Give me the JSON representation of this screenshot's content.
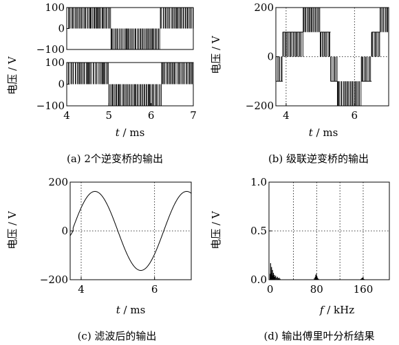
{
  "chart_data": [
    {
      "id": "a",
      "type": "line",
      "caption": "(a)  2个逆变桥的输出",
      "xlabel_var": "t",
      "xlabel_unit": " / ms",
      "ylabel": "电压 / V",
      "xlim": [
        4,
        7
      ],
      "xticks": [
        "4",
        "5",
        "6",
        "7"
      ],
      "subplots": [
        {
          "ylim": [
            -100,
            100
          ],
          "yticks": [
            "100",
            "0",
            "−100"
          ],
          "series": [
            {
              "style": "pwm",
              "segments": [
                {
                  "x": [
                    4.0,
                    4.55
                  ],
                  "levels": [
                    0,
                    100
                  ]
                },
                {
                  "x": [
                    4.55,
                    4.72
                  ],
                  "levels": [
                    0,
                    100
                  ]
                },
                {
                  "x": [
                    4.72,
                    5.05
                  ],
                  "levels": [
                    0,
                    100
                  ]
                },
                {
                  "x": [
                    5.05,
                    5.45
                  ],
                  "levels": [
                    -100,
                    0
                  ]
                },
                {
                  "x": [
                    5.45,
                    5.9
                  ],
                  "levels": [
                    -100,
                    0
                  ]
                },
                {
                  "x": [
                    5.9,
                    6.05
                  ],
                  "levels": [
                    -100,
                    0
                  ]
                },
                {
                  "x": [
                    6.05,
                    6.22
                  ],
                  "levels": [
                    -100,
                    0
                  ]
                },
                {
                  "x": [
                    6.22,
                    6.72
                  ],
                  "levels": [
                    0,
                    100
                  ]
                },
                {
                  "x": [
                    6.72,
                    7.0
                  ],
                  "levels": [
                    0,
                    100
                  ]
                }
              ]
            }
          ]
        },
        {
          "ylim": [
            -100,
            100
          ],
          "yticks": [
            "100",
            "0",
            "−100"
          ],
          "series": [
            {
              "style": "pwm",
              "segments": [
                {
                  "x": [
                    4.0,
                    4.5
                  ],
                  "levels": [
                    0,
                    100
                  ]
                },
                {
                  "x": [
                    4.5,
                    4.85
                  ],
                  "levels": [
                    0,
                    100
                  ]
                },
                {
                  "x": [
                    4.85,
                    5.0
                  ],
                  "levels": [
                    0,
                    100
                  ]
                },
                {
                  "x": [
                    5.0,
                    5.25
                  ],
                  "levels": [
                    -100,
                    0
                  ]
                },
                {
                  "x": [
                    5.25,
                    5.95
                  ],
                  "levels": [
                    -100,
                    0
                  ]
                },
                {
                  "x": [
                    5.95,
                    6.25
                  ],
                  "levels": [
                    -100,
                    0
                  ]
                },
                {
                  "x": [
                    6.25,
                    6.55
                  ],
                  "levels": [
                    0,
                    100
                  ]
                },
                {
                  "x": [
                    6.55,
                    7.0
                  ],
                  "levels": [
                    0,
                    100
                  ]
                }
              ]
            }
          ]
        }
      ]
    },
    {
      "id": "b",
      "type": "line",
      "caption": "(b)  级联逆变桥的输出",
      "xlabel_var": "t",
      "xlabel_unit": " / ms",
      "ylabel": "电压 / V",
      "xlim": [
        3.7,
        7.0
      ],
      "ylim": [
        -200,
        200
      ],
      "xticks_at": [
        4,
        6
      ],
      "xticks": [
        "4",
        "6"
      ],
      "yticks_at": [
        200,
        0,
        -200
      ],
      "yticks": [
        "200",
        "0",
        "−200"
      ],
      "grid": true,
      "series": [
        {
          "style": "pwm",
          "segments": [
            {
              "x": [
                3.7,
                3.9
              ],
              "levels": [
                -100,
                0
              ]
            },
            {
              "x": [
                3.9,
                4.5
              ],
              "levels": [
                0,
                100
              ]
            },
            {
              "x": [
                4.5,
                5.0
              ],
              "levels": [
                100,
                200
              ]
            },
            {
              "x": [
                5.0,
                5.3
              ],
              "levels": [
                0,
                100
              ]
            },
            {
              "x": [
                5.3,
                5.5
              ],
              "levels": [
                -100,
                0
              ]
            },
            {
              "x": [
                5.5,
                6.2
              ],
              "levels": [
                -200,
                -100
              ]
            },
            {
              "x": [
                6.2,
                6.5
              ],
              "levels": [
                -100,
                0
              ]
            },
            {
              "x": [
                6.5,
                6.75
              ],
              "levels": [
                0,
                100
              ]
            },
            {
              "x": [
                6.75,
                7.0
              ],
              "levels": [
                100,
                200
              ]
            }
          ]
        }
      ]
    },
    {
      "id": "c",
      "type": "line",
      "caption": "(c)  滤波后的输出",
      "xlabel_var": "t",
      "xlabel_unit": " / ms",
      "ylabel": "电压 / V",
      "xlim": [
        3.7,
        7.0
      ],
      "ylim": [
        -200,
        200
      ],
      "xticks_at": [
        4,
        6
      ],
      "xticks": [
        "4",
        "6"
      ],
      "yticks_at": [
        200,
        0,
        -200
      ],
      "yticks": [
        "200",
        "0",
        "−200"
      ],
      "grid": true,
      "series": [
        {
          "style": "sine",
          "amplitude": 162,
          "period_ms": 2.5,
          "zero_cross_ms": 3.75,
          "start_transient": {
            "x": [
              3.7,
              3.78
            ],
            "y": [
              -20,
              0
            ]
          }
        }
      ]
    },
    {
      "id": "d",
      "type": "bar",
      "caption": "(d)  输出傅里叶分析结果",
      "xlabel_var": "f",
      "xlabel_unit": " / kHz",
      "ylabel": "电压 / V",
      "xlim": [
        -2,
        205
      ],
      "ylim": [
        0,
        1.0
      ],
      "xticks_at": [
        0,
        80,
        160
      ],
      "xticks": [
        "0",
        "80",
        "160"
      ],
      "yticks_at": [
        1.0,
        0.5,
        0.0
      ],
      "yticks": [
        "1.0",
        "0.5",
        "0.0"
      ],
      "grid_x": [
        40,
        80,
        120,
        160
      ],
      "grid_y": [
        0.5
      ],
      "series": [
        {
          "style": "spectrum",
          "x": [
            0,
            0.8,
            1.6,
            2.4,
            3.2,
            4.0,
            4.8,
            5.6,
            6.4,
            7.2,
            8.0,
            9.5,
            11,
            12.5,
            14,
            15.5,
            17,
            76,
            77.5,
            78.5,
            79.5,
            80.5,
            81.5,
            83,
            156,
            157.5,
            158.5,
            159.5,
            160.5,
            161.5
          ],
          "y": [
            0.06,
            0.17,
            0.07,
            0.13,
            0.05,
            0.1,
            0.04,
            0.07,
            0.03,
            0.05,
            0.03,
            0.04,
            0.02,
            0.03,
            0.015,
            0.02,
            0.01,
            0.015,
            0.03,
            0.05,
            0.06,
            0.035,
            0.02,
            0.01,
            0.008,
            0.015,
            0.02,
            0.015,
            0.01,
            0.006
          ]
        }
      ]
    }
  ]
}
